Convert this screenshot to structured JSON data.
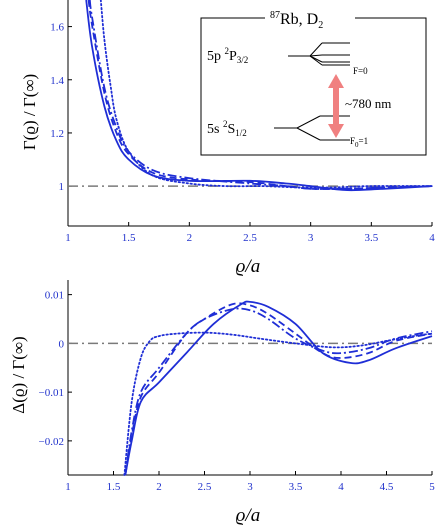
{
  "chart_data": [
    {
      "type": "line",
      "panel": "top",
      "xlabel": "ϱ/a",
      "ylabel": "Γ(ϱ) / Γ(∞)",
      "xlim": [
        1,
        4
      ],
      "ylim": [
        0.85,
        1.7
      ],
      "xticks": [
        "1",
        "1.5",
        "2",
        "2.5",
        "3",
        "3.5",
        "4"
      ],
      "yticks": [
        "1",
        "1.2",
        "1.4",
        "1.6"
      ],
      "reference_line": 1,
      "series": [
        {
          "style": "solid",
          "x": [
            1.15,
            1.2,
            1.3,
            1.4,
            1.5,
            1.7,
            2.0,
            2.5,
            2.8,
            3.0,
            3.3,
            3.6,
            4.0
          ],
          "y": [
            1.7,
            1.52,
            1.3,
            1.17,
            1.1,
            1.04,
            1.02,
            1.02,
            1.01,
            1.0,
            0.985,
            0.99,
            1.0
          ]
        },
        {
          "style": "dashed",
          "x": [
            1.17,
            1.2,
            1.3,
            1.4,
            1.5,
            1.7,
            2.0,
            2.5,
            2.8,
            3.0,
            3.3,
            3.6,
            4.0
          ],
          "y": [
            1.7,
            1.6,
            1.35,
            1.2,
            1.12,
            1.05,
            1.025,
            1.015,
            1.0,
            0.99,
            0.99,
            0.995,
            1.0
          ]
        },
        {
          "style": "dashdot",
          "x": [
            1.18,
            1.2,
            1.3,
            1.4,
            1.5,
            1.7,
            2.0,
            2.5,
            2.8,
            3.0,
            3.3,
            3.6,
            4.0
          ],
          "y": [
            1.7,
            1.63,
            1.37,
            1.22,
            1.13,
            1.06,
            1.03,
            1.01,
            1.0,
            0.99,
            0.99,
            0.995,
            1.0
          ]
        },
        {
          "style": "dotted",
          "x": [
            1.27,
            1.3,
            1.35,
            1.4,
            1.5,
            1.7,
            2.0,
            2.3,
            2.6,
            2.9,
            3.2,
            3.5,
            4.0
          ],
          "y": [
            1.7,
            1.55,
            1.38,
            1.25,
            1.13,
            1.04,
            1.01,
            1.0,
            1.0,
            0.995,
            0.995,
            1.0,
            1.0
          ]
        }
      ]
    },
    {
      "type": "line",
      "panel": "bottom",
      "xlabel": "ϱ/a",
      "ylabel": "Δ(ϱ) / Γ(∞)",
      "xlim": [
        1,
        5
      ],
      "ylim": [
        -0.027,
        0.013
      ],
      "xticks": [
        "1",
        "1.5",
        "2",
        "2.5",
        "3",
        "3.5",
        "4",
        "4.5",
        "5"
      ],
      "yticks": [
        "0.01",
        "0",
        "−0.01",
        "−0.02"
      ],
      "reference_line": 0,
      "series": [
        {
          "style": "solid",
          "x": [
            1.63,
            1.7,
            1.8,
            2.0,
            2.3,
            2.6,
            2.9,
            3.0,
            3.2,
            3.5,
            3.8,
            4.1,
            4.3,
            4.6,
            5.0
          ],
          "y": [
            -0.027,
            -0.02,
            -0.012,
            -0.008,
            -0.002,
            0.004,
            0.008,
            0.0085,
            0.0075,
            0.004,
            -0.002,
            -0.004,
            -0.0035,
            -0.001,
            0.0015
          ]
        },
        {
          "style": "dashed",
          "x": [
            1.63,
            1.7,
            1.8,
            2.0,
            2.3,
            2.5,
            2.8,
            3.0,
            3.2,
            3.5,
            3.8,
            4.0,
            4.3,
            4.6,
            5.0
          ],
          "y": [
            -0.027,
            -0.019,
            -0.011,
            -0.006,
            0.002,
            0.005,
            0.008,
            0.0078,
            0.006,
            0.002,
            -0.002,
            -0.003,
            -0.002,
            0.0005,
            0.002
          ]
        },
        {
          "style": "dashdot",
          "x": [
            1.63,
            1.7,
            1.8,
            2.0,
            2.3,
            2.5,
            2.8,
            3.0,
            3.2,
            3.5,
            3.8,
            4.0,
            4.3,
            4.6,
            5.0
          ],
          "y": [
            -0.027,
            -0.018,
            -0.01,
            -0.005,
            0.002,
            0.005,
            0.007,
            0.0068,
            0.005,
            0.001,
            -0.0015,
            -0.002,
            -0.001,
            0.001,
            0.0025
          ]
        },
        {
          "style": "dotted",
          "x": [
            1.62,
            1.7,
            1.8,
            1.9,
            2.0,
            2.2,
            2.5,
            2.8,
            3.1,
            3.5,
            3.9,
            4.2,
            4.5,
            4.8,
            5.0
          ],
          "y": [
            -0.027,
            -0.012,
            -0.003,
            0.0005,
            0.0015,
            0.002,
            0.0022,
            0.0018,
            0.001,
            0.0,
            -0.0008,
            -0.0005,
            0.0005,
            0.0015,
            0.002
          ]
        }
      ]
    }
  ],
  "inset": {
    "title_sup": "87",
    "title_main": "Rb, D",
    "title_sub": "2",
    "upper_level_prefix": "5p ",
    "upper_level_sup": "2",
    "upper_level_main": "P",
    "upper_level_sub": "3/2",
    "upper_f_label": "F=0",
    "lower_level_prefix": "5s ",
    "lower_level_sup": "2",
    "lower_level_main": "S",
    "lower_level_sub": "1/2",
    "lower_f_label_main": "F",
    "lower_f_label_sub": "0",
    "lower_f_label_value": "=1",
    "wavelength_label": "~780 nm",
    "arrow_color": "#f08080"
  },
  "colors": {
    "curve": "#1f2ed6",
    "reference": "#7a7a7a",
    "ticks": "#2233cc"
  }
}
